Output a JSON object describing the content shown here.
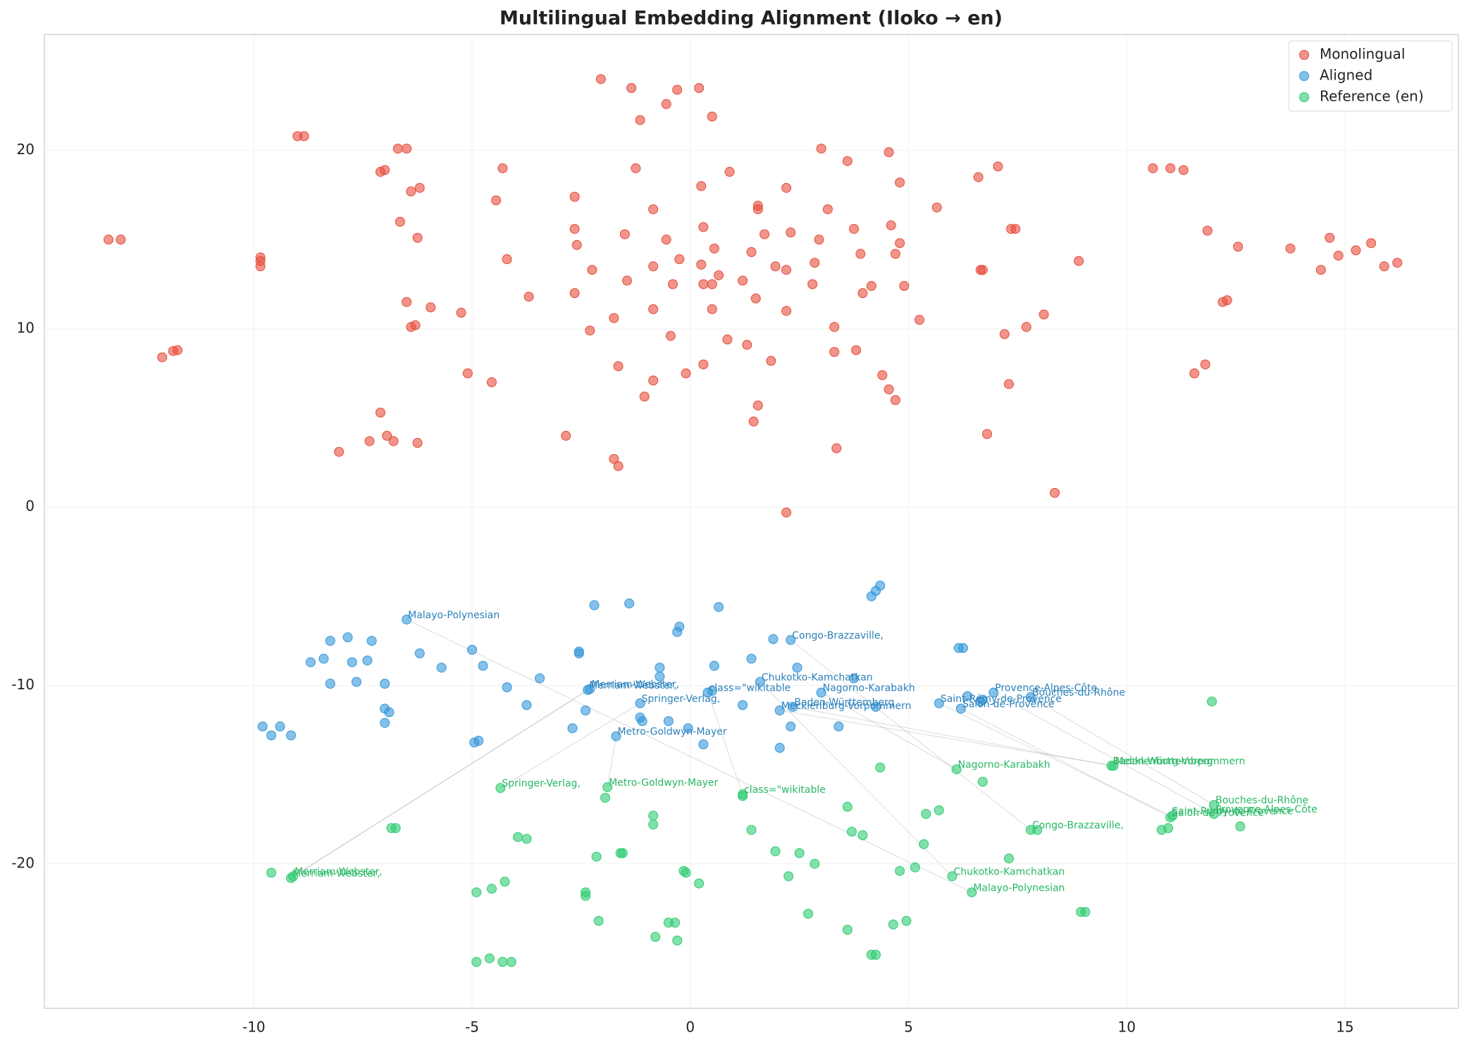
{
  "chart_data": {
    "type": "scatter",
    "title": "Multilingual Embedding Alignment (Iloko → en)",
    "xlim": [
      -14.8,
      17.6
    ],
    "ylim": [
      -28.1,
      26.5
    ],
    "xticks": [
      -10,
      -5,
      0,
      5,
      10,
      15
    ],
    "yticks": [
      -20,
      -10,
      0,
      10,
      20
    ],
    "grid": true,
    "legend": "upper right",
    "series": [
      {
        "name": "Monolingual",
        "color": "#e74c3c",
        "x": [
          -13.33,
          -13.05,
          -9.85,
          -9.85,
          -9.85,
          -9.0,
          -8.85,
          -12.1,
          -11.85,
          -11.75,
          -7.1,
          -7.0,
          -6.7,
          -6.5,
          -6.4,
          -6.2,
          -6.65,
          -6.25,
          -6.5,
          -5.95,
          -6.4,
          -6.3,
          -7.1,
          -7.35,
          -6.95,
          -6.8,
          -8.05,
          -6.25,
          -5.25,
          -5.1,
          -4.55,
          -4.45,
          -4.3,
          -4.2,
          -3.7,
          -2.85,
          -2.65,
          -2.65,
          -2.6,
          -2.65,
          -2.3,
          -2.25,
          -2.05,
          -1.35,
          -1.15,
          -1.25,
          -1.5,
          -1.45,
          -1.75,
          -1.65,
          -1.75,
          -1.65,
          -0.55,
          -0.3,
          0.2,
          0.5,
          -0.85,
          -0.55,
          -0.85,
          -0.4,
          -0.25,
          -0.85,
          -0.45,
          -1.05,
          -0.85,
          -0.1,
          0.3,
          0.25,
          0.3,
          0.55,
          0.25,
          0.3,
          0.5,
          0.65,
          0.5,
          0.85,
          0.9,
          1.55,
          1.55,
          1.7,
          1.4,
          1.2,
          1.5,
          1.3,
          1.85,
          1.55,
          1.45,
          1.95,
          2.2,
          2.3,
          2.2,
          2.2,
          2.2,
          3.0,
          3.15,
          2.95,
          2.85,
          2.8,
          3.3,
          3.3,
          3.35,
          3.6,
          3.75,
          3.9,
          3.95,
          4.15,
          3.8,
          4.55,
          4.8,
          4.6,
          4.7,
          4.8,
          4.9,
          4.4,
          4.55,
          4.7,
          5.25,
          5.65,
          6.6,
          6.65,
          6.7,
          7.05,
          7.35,
          7.45,
          7.2,
          7.7,
          8.1,
          7.3,
          6.8,
          8.35,
          8.9,
          10.6,
          11.0,
          11.3,
          11.85,
          12.2,
          12.3,
          12.55,
          11.55,
          11.8,
          13.75,
          14.45,
          14.65,
          14.85,
          15.25,
          15.6,
          15.9,
          16.2
        ],
        "y": [
          15.0,
          15.0,
          13.5,
          13.8,
          14.0,
          20.8,
          20.8,
          8.4,
          8.75,
          8.8,
          18.8,
          18.9,
          20.1,
          20.1,
          17.7,
          17.9,
          16.0,
          15.1,
          11.5,
          11.2,
          10.1,
          10.2,
          5.3,
          3.7,
          4.0,
          3.7,
          3.1,
          3.6,
          10.9,
          7.5,
          7.0,
          17.2,
          19.0,
          13.9,
          11.8,
          4.0,
          17.4,
          15.6,
          14.7,
          12.0,
          9.9,
          13.3,
          24.0,
          23.5,
          21.7,
          19.0,
          15.3,
          12.7,
          10.6,
          7.9,
          2.7,
          2.3,
          22.6,
          23.4,
          23.5,
          21.9,
          16.7,
          15.0,
          13.5,
          12.5,
          13.9,
          11.1,
          9.6,
          6.2,
          7.1,
          7.5,
          8.0,
          18.0,
          15.7,
          14.5,
          13.6,
          12.5,
          12.5,
          13.0,
          11.1,
          9.4,
          18.8,
          16.9,
          16.7,
          15.3,
          14.3,
          12.7,
          11.7,
          9.1,
          8.2,
          5.7,
          4.8,
          13.5,
          17.9,
          15.4,
          13.3,
          11.0,
          -0.3,
          20.1,
          16.7,
          15.0,
          13.7,
          12.5,
          10.1,
          8.7,
          3.3,
          19.4,
          15.6,
          14.2,
          12.0,
          12.4,
          8.8,
          19.9,
          18.2,
          15.8,
          14.2,
          14.8,
          12.4,
          7.4,
          6.6,
          6.0,
          10.5,
          16.8,
          18.5,
          13.3,
          13.3,
          19.1,
          15.6,
          15.6,
          9.7,
          10.1,
          10.8,
          6.9,
          4.1,
          0.8,
          13.8,
          19.0,
          19.0,
          18.9,
          15.5,
          11.5,
          11.6,
          14.6,
          7.5,
          8.0,
          14.5,
          13.3,
          15.1,
          14.1,
          14.4,
          14.8,
          13.5,
          13.7
        ]
      },
      {
        "name": "Aligned",
        "color": "#3498db",
        "x": [
          -9.8,
          -9.6,
          -9.4,
          -9.15,
          -8.7,
          -8.4,
          -8.25,
          -8.25,
          -7.85,
          -7.75,
          -7.65,
          -7.4,
          -7.3,
          -7.0,
          -7.0,
          -6.9,
          -7.0,
          -6.5,
          -6.2,
          -5.7,
          -5.0,
          -4.75,
          -4.95,
          -4.85,
          -4.2,
          -3.75,
          -3.45,
          -2.7,
          -2.55,
          -2.55,
          -2.4,
          -2.35,
          -2.3,
          -2.2,
          -1.4,
          -1.7,
          -1.15,
          -1.15,
          -1.1,
          -0.7,
          -0.7,
          -0.5,
          -0.3,
          -0.25,
          -0.05,
          0.3,
          0.4,
          0.5,
          0.55,
          0.65,
          1.2,
          1.4,
          1.6,
          1.9,
          2.05,
          2.05,
          2.3,
          2.35,
          2.3,
          2.45,
          3.0,
          3.4,
          3.75,
          4.15,
          4.25,
          4.35,
          4.25,
          5.7,
          6.15,
          6.25,
          6.2,
          6.35,
          6.65,
          6.7,
          6.95,
          7.8
        ],
        "y": [
          -12.3,
          -12.8,
          -12.3,
          -12.8,
          -8.7,
          -8.5,
          -7.5,
          -9.9,
          -7.3,
          -8.7,
          -9.8,
          -8.6,
          -7.5,
          -9.9,
          -11.3,
          -11.5,
          -12.1,
          -6.3,
          -8.2,
          -9.0,
          -8.0,
          -8.9,
          -13.2,
          -13.1,
          -10.1,
          -11.1,
          -9.6,
          -12.4,
          -8.1,
          -8.2,
          -11.4,
          -10.25,
          -10.2,
          -5.5,
          -5.4,
          -12.85,
          -11.0,
          -11.8,
          -12.0,
          -9.0,
          -9.5,
          -12.0,
          -7.0,
          -6.7,
          -12.4,
          -13.3,
          -10.4,
          -10.3,
          -8.9,
          -5.6,
          -11.1,
          -8.5,
          -9.8,
          -7.4,
          -13.5,
          -11.4,
          -12.3,
          -11.2,
          -7.45,
          -9.0,
          -10.4,
          -12.3,
          -9.6,
          -5.0,
          -4.7,
          -4.4,
          -11.2,
          -11.0,
          -7.9,
          -7.9,
          -11.3,
          -10.6,
          -10.9,
          -10.8,
          -10.4,
          -10.65
        ]
      },
      {
        "name": "Reference (en)",
        "color": "#2ecc71",
        "x": [
          -9.6,
          -9.15,
          -9.1,
          -6.85,
          -6.75,
          -4.9,
          -4.6,
          -4.3,
          -4.1,
          -4.9,
          -4.55,
          -4.25,
          -4.35,
          -3.95,
          -3.75,
          -2.4,
          -2.4,
          -2.1,
          -2.15,
          -1.95,
          -1.9,
          -1.6,
          -1.55,
          -0.85,
          -0.85,
          -0.8,
          -0.5,
          -0.35,
          -0.3,
          -0.15,
          -0.1,
          0.2,
          1.2,
          1.2,
          1.4,
          1.95,
          2.25,
          2.5,
          2.7,
          2.85,
          3.6,
          3.6,
          3.7,
          3.95,
          4.15,
          4.25,
          4.35,
          4.65,
          4.8,
          4.95,
          5.15,
          5.35,
          5.4,
          5.7,
          6.0,
          6.1,
          6.45,
          6.7,
          7.3,
          7.8,
          7.95,
          8.95,
          9.05,
          9.65,
          9.7,
          10.8,
          10.95,
          11.0,
          11.05,
          11.95,
          12.0,
          12.0,
          12.6
        ],
        "y": [
          -20.5,
          -20.8,
          -20.7,
          -18.0,
          -18.0,
          -25.5,
          -25.3,
          -25.5,
          -25.5,
          -21.6,
          -21.4,
          -21.0,
          -15.75,
          -18.5,
          -18.6,
          -21.6,
          -21.8,
          -23.2,
          -19.6,
          -16.3,
          -15.7,
          -19.4,
          -19.4,
          -17.3,
          -17.8,
          -24.1,
          -23.3,
          -23.3,
          -24.3,
          -20.4,
          -20.5,
          -21.1,
          -16.1,
          -16.2,
          -18.1,
          -19.3,
          -20.7,
          -19.4,
          -22.8,
          -20.0,
          -23.7,
          -16.8,
          -18.2,
          -18.4,
          -25.1,
          -25.1,
          -14.6,
          -23.4,
          -20.4,
          -23.2,
          -20.2,
          -18.9,
          -17.2,
          -17.0,
          -20.7,
          -14.7,
          -21.6,
          -15.4,
          -19.7,
          -18.1,
          -18.1,
          -22.7,
          -22.7,
          -14.5,
          -14.5,
          -18.1,
          -18.0,
          -17.4,
          -17.3,
          -10.9,
          -16.7,
          -17.2,
          -17.9
        ]
      }
    ],
    "annotations": [
      {
        "text": "Malayo-Polynesian",
        "x": -6.5,
        "y": -6.3,
        "ref_x": 6.45,
        "ref_y": -21.6
      },
      {
        "text": "Congo-Brazzaville,",
        "x": 2.3,
        "y": -7.45,
        "ref_x": 7.8,
        "ref_y": -18.1
      },
      {
        "text": "Chukotko-Kamchatkan",
        "x": 1.6,
        "y": -9.8,
        "ref_x": 6.0,
        "ref_y": -20.7
      },
      {
        "text": "Nagorno-Karabakh",
        "x": 3.0,
        "y": -10.4,
        "ref_x": 6.1,
        "ref_y": -14.7
      },
      {
        "text": "Provence-Alpes-Côte",
        "x": 6.95,
        "y": -10.4,
        "ref_x": 12.0,
        "ref_y": -17.2
      },
      {
        "text": "Bouches-du-Rhône",
        "x": 7.8,
        "y": -10.65,
        "ref_x": 12.0,
        "ref_y": -16.7
      },
      {
        "text": "Saint-Rémy-de-Provence",
        "x": 5.7,
        "y": -11.0,
        "ref_x": 11.0,
        "ref_y": -17.3
      },
      {
        "text": "Salon-de-Provence",
        "x": 6.2,
        "y": -11.3,
        "ref_x": 11.0,
        "ref_y": -17.4
      },
      {
        "text": "Baden-Württemberg",
        "x": 2.35,
        "y": -11.2,
        "ref_x": 9.65,
        "ref_y": -14.5
      },
      {
        "text": "Mecklenburg-Vorpommern",
        "x": 2.05,
        "y": -11.4,
        "ref_x": 9.7,
        "ref_y": -14.5
      },
      {
        "text": "Merriam-Webster,",
        "x": -2.35,
        "y": -10.25,
        "ref_x": -9.15,
        "ref_y": -20.8
      },
      {
        "text": "Merriam-Webster,",
        "x": -2.3,
        "y": -10.2,
        "ref_x": -9.1,
        "ref_y": -20.7
      },
      {
        "text": "Springer-Verlag,",
        "x": -1.15,
        "y": -11.0,
        "ref_x": -4.35,
        "ref_y": -15.75
      },
      {
        "text": "class=\"wikitable",
        "x": 0.4,
        "y": -10.4,
        "ref_x": 1.2,
        "ref_y": -16.1
      },
      {
        "text": "Metro-Goldwyn-Mayer",
        "x": -1.7,
        "y": -12.85,
        "ref_x": -1.9,
        "ref_y": -15.7
      }
    ]
  }
}
